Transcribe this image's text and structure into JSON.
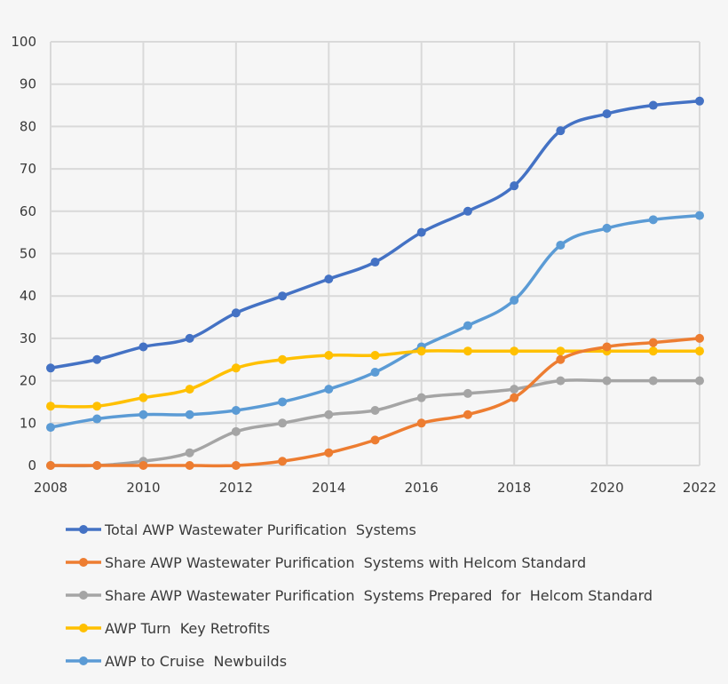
{
  "chart_data": {
    "type": "line",
    "title": "",
    "xlabel": "",
    "ylabel": "",
    "x": [
      2008,
      2009,
      2010,
      2011,
      2012,
      2013,
      2014,
      2015,
      2016,
      2017,
      2018,
      2019,
      2020,
      2021,
      2022
    ],
    "xlim": [
      2008,
      2022
    ],
    "ylim": [
      0,
      100
    ],
    "x_ticks": [
      "2008",
      "2010",
      "2012",
      "2014",
      "2016",
      "2018",
      "2020",
      "2022"
    ],
    "y_ticks": [
      "0",
      "10",
      "20",
      "30",
      "40",
      "50",
      "60",
      "70",
      "80",
      "90",
      "100"
    ],
    "grid": true,
    "legend_position": "bottom",
    "series": [
      {
        "name": "Total AWP Wastewater Purification  Systems",
        "color": "#4472c4",
        "values": [
          23,
          25,
          28,
          30,
          36,
          40,
          44,
          48,
          55,
          60,
          66,
          79,
          83,
          85,
          86
        ]
      },
      {
        "name": "Share AWP Wastewater Purification  Systems with Helcom Standard",
        "color": "#ed7d31",
        "values": [
          0,
          0,
          0,
          0,
          0,
          1,
          3,
          6,
          10,
          12,
          16,
          25,
          28,
          29,
          30
        ]
      },
      {
        "name": "Share AWP Wastewater Purification  Systems Prepared  for  Helcom Standard",
        "color": "#a5a5a5",
        "values": [
          0,
          0,
          1,
          3,
          8,
          10,
          12,
          13,
          16,
          17,
          18,
          20,
          20,
          20,
          20
        ]
      },
      {
        "name": "AWP Turn  Key Retrofits",
        "color": "#ffc000",
        "values": [
          14,
          14,
          16,
          18,
          23,
          25,
          26,
          26,
          27,
          27,
          27,
          27,
          27,
          27,
          27
        ]
      },
      {
        "name": "AWP to Cruise  Newbuilds",
        "color": "#5b9bd5",
        "values": [
          9,
          11,
          12,
          12,
          13,
          15,
          18,
          22,
          28,
          33,
          39,
          52,
          56,
          58,
          59
        ]
      }
    ]
  }
}
